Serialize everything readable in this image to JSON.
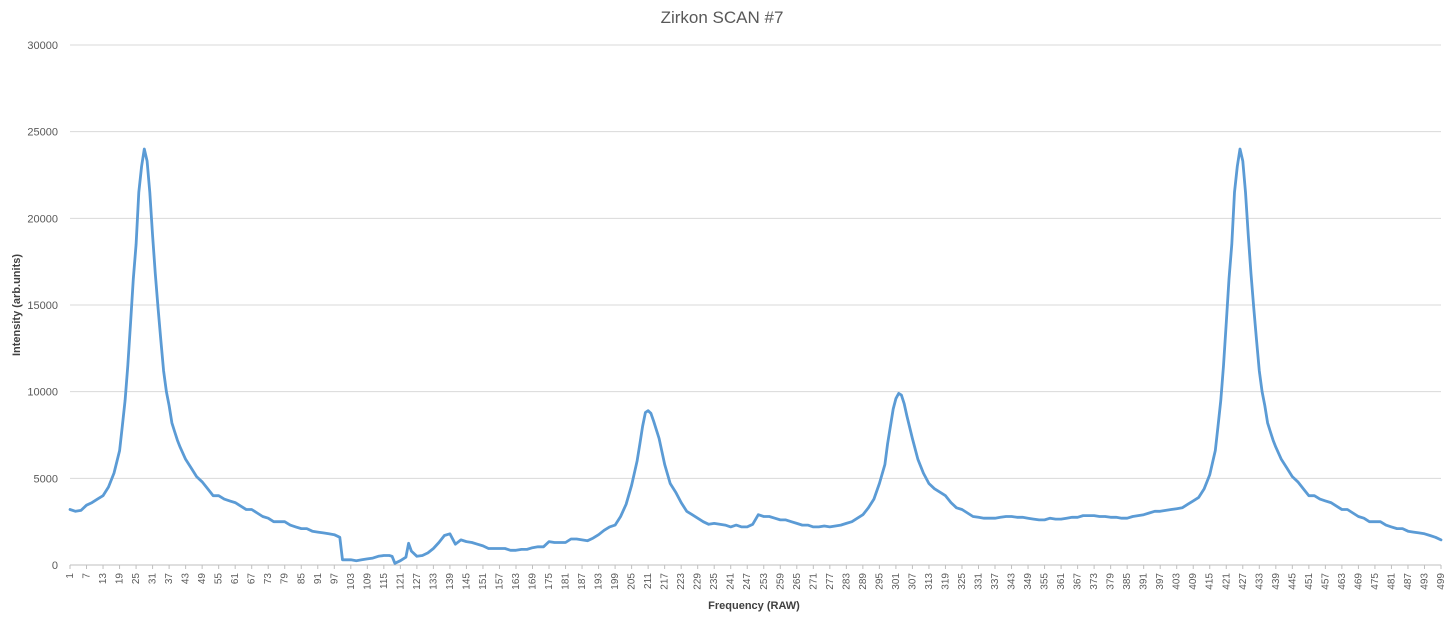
{
  "chart_data": {
    "type": "line",
    "title": "Zirkon SCAN #7",
    "xlabel": "Frequency (RAW)",
    "ylabel": "Intensity (arb.units)",
    "ylim": [
      0,
      30000
    ],
    "yticks": [
      0,
      5000,
      10000,
      15000,
      20000,
      25000,
      30000
    ],
    "xlim": [
      1,
      499
    ],
    "xtick_start": 1,
    "xtick_step": 6,
    "grid": true,
    "legend": "none",
    "series_color": "#5b9bd5",
    "series": [
      {
        "points": [
          [
            1,
            3200
          ],
          [
            3,
            3100
          ],
          [
            5,
            3150
          ],
          [
            7,
            3450
          ],
          [
            9,
            3600
          ],
          [
            11,
            3800
          ],
          [
            13,
            4000
          ],
          [
            15,
            4500
          ],
          [
            17,
            5300
          ],
          [
            19,
            6600
          ],
          [
            20,
            8000
          ],
          [
            21,
            9500
          ],
          [
            22,
            11500
          ],
          [
            23,
            14000
          ],
          [
            24,
            16500
          ],
          [
            25,
            18500
          ],
          [
            26,
            21500
          ],
          [
            27,
            23000
          ],
          [
            28,
            24000
          ],
          [
            29,
            23300
          ],
          [
            30,
            21500
          ],
          [
            31,
            19000
          ],
          [
            32,
            16800
          ],
          [
            33,
            14800
          ],
          [
            34,
            13000
          ],
          [
            35,
            11200
          ],
          [
            36,
            10000
          ],
          [
            37,
            9200
          ],
          [
            38,
            8200
          ],
          [
            39,
            7700
          ],
          [
            40,
            7200
          ],
          [
            41,
            6800
          ],
          [
            43,
            6100
          ],
          [
            45,
            5600
          ],
          [
            47,
            5100
          ],
          [
            49,
            4800
          ],
          [
            51,
            4400
          ],
          [
            53,
            4000
          ],
          [
            55,
            4000
          ],
          [
            57,
            3800
          ],
          [
            59,
            3700
          ],
          [
            61,
            3600
          ],
          [
            63,
            3400
          ],
          [
            65,
            3200
          ],
          [
            67,
            3200
          ],
          [
            69,
            3000
          ],
          [
            71,
            2800
          ],
          [
            73,
            2700
          ],
          [
            75,
            2500
          ],
          [
            77,
            2500
          ],
          [
            79,
            2500
          ],
          [
            81,
            2300
          ],
          [
            83,
            2200
          ],
          [
            85,
            2100
          ],
          [
            87,
            2100
          ],
          [
            89,
            1950
          ],
          [
            91,
            1900
          ],
          [
            93,
            1850
          ],
          [
            95,
            1800
          ],
          [
            97,
            1750
          ],
          [
            99,
            1600
          ],
          [
            100,
            300
          ],
          [
            103,
            300
          ],
          [
            105,
            250
          ],
          [
            107,
            300
          ],
          [
            109,
            350
          ],
          [
            111,
            400
          ],
          [
            113,
            500
          ],
          [
            115,
            550
          ],
          [
            117,
            550
          ],
          [
            118,
            500
          ],
          [
            119,
            100
          ],
          [
            121,
            250
          ],
          [
            123,
            450
          ],
          [
            124,
            1250
          ],
          [
            125,
            800
          ],
          [
            127,
            500
          ],
          [
            129,
            550
          ],
          [
            131,
            700
          ],
          [
            133,
            950
          ],
          [
            135,
            1300
          ],
          [
            137,
            1700
          ],
          [
            139,
            1800
          ],
          [
            141,
            1200
          ],
          [
            143,
            1450
          ],
          [
            145,
            1350
          ],
          [
            147,
            1300
          ],
          [
            149,
            1200
          ],
          [
            151,
            1100
          ],
          [
            153,
            950
          ],
          [
            155,
            950
          ],
          [
            157,
            950
          ],
          [
            159,
            950
          ],
          [
            161,
            850
          ],
          [
            163,
            850
          ],
          [
            165,
            900
          ],
          [
            167,
            900
          ],
          [
            169,
            1000
          ],
          [
            171,
            1050
          ],
          [
            173,
            1050
          ],
          [
            175,
            1350
          ],
          [
            177,
            1300
          ],
          [
            179,
            1300
          ],
          [
            181,
            1300
          ],
          [
            183,
            1500
          ],
          [
            185,
            1500
          ],
          [
            187,
            1450
          ],
          [
            189,
            1400
          ],
          [
            191,
            1550
          ],
          [
            193,
            1750
          ],
          [
            195,
            2000
          ],
          [
            197,
            2200
          ],
          [
            199,
            2300
          ],
          [
            201,
            2800
          ],
          [
            203,
            3500
          ],
          [
            205,
            4600
          ],
          [
            207,
            6000
          ],
          [
            208,
            7000
          ],
          [
            209,
            8000
          ],
          [
            210,
            8800
          ],
          [
            211,
            8900
          ],
          [
            212,
            8750
          ],
          [
            213,
            8300
          ],
          [
            215,
            7300
          ],
          [
            217,
            5800
          ],
          [
            219,
            4700
          ],
          [
            221,
            4200
          ],
          [
            223,
            3600
          ],
          [
            225,
            3100
          ],
          [
            227,
            2900
          ],
          [
            229,
            2700
          ],
          [
            231,
            2500
          ],
          [
            233,
            2350
          ],
          [
            235,
            2400
          ],
          [
            237,
            2350
          ],
          [
            239,
            2300
          ],
          [
            241,
            2200
          ],
          [
            243,
            2300
          ],
          [
            245,
            2200
          ],
          [
            247,
            2200
          ],
          [
            249,
            2350
          ],
          [
            251,
            2900
          ],
          [
            253,
            2800
          ],
          [
            255,
            2800
          ],
          [
            257,
            2700
          ],
          [
            259,
            2600
          ],
          [
            261,
            2600
          ],
          [
            263,
            2500
          ],
          [
            265,
            2400
          ],
          [
            267,
            2300
          ],
          [
            269,
            2300
          ],
          [
            271,
            2200
          ],
          [
            273,
            2200
          ],
          [
            275,
            2250
          ],
          [
            277,
            2200
          ],
          [
            279,
            2250
          ],
          [
            281,
            2300
          ],
          [
            283,
            2400
          ],
          [
            285,
            2500
          ],
          [
            287,
            2700
          ],
          [
            289,
            2900
          ],
          [
            291,
            3300
          ],
          [
            293,
            3800
          ],
          [
            295,
            4700
          ],
          [
            297,
            5800
          ],
          [
            298,
            7000
          ],
          [
            299,
            8000
          ],
          [
            300,
            9000
          ],
          [
            301,
            9600
          ],
          [
            302,
            9900
          ],
          [
            303,
            9800
          ],
          [
            304,
            9300
          ],
          [
            305,
            8600
          ],
          [
            307,
            7300
          ],
          [
            309,
            6100
          ],
          [
            311,
            5300
          ],
          [
            313,
            4700
          ],
          [
            315,
            4400
          ],
          [
            317,
            4200
          ],
          [
            319,
            4000
          ],
          [
            321,
            3600
          ],
          [
            323,
            3300
          ],
          [
            325,
            3200
          ],
          [
            327,
            3000
          ],
          [
            329,
            2800
          ],
          [
            331,
            2750
          ],
          [
            333,
            2700
          ],
          [
            335,
            2700
          ],
          [
            337,
            2700
          ],
          [
            339,
            2750
          ],
          [
            341,
            2800
          ],
          [
            343,
            2800
          ],
          [
            345,
            2750
          ],
          [
            347,
            2750
          ],
          [
            349,
            2700
          ],
          [
            351,
            2650
          ],
          [
            353,
            2600
          ],
          [
            355,
            2600
          ],
          [
            357,
            2700
          ],
          [
            359,
            2650
          ],
          [
            361,
            2650
          ],
          [
            363,
            2700
          ],
          [
            365,
            2750
          ],
          [
            367,
            2750
          ],
          [
            369,
            2850
          ],
          [
            371,
            2850
          ],
          [
            373,
            2850
          ],
          [
            375,
            2800
          ],
          [
            377,
            2800
          ],
          [
            379,
            2750
          ],
          [
            381,
            2750
          ],
          [
            383,
            2700
          ],
          [
            385,
            2700
          ],
          [
            387,
            2800
          ],
          [
            389,
            2850
          ],
          [
            391,
            2900
          ],
          [
            393,
            3000
          ],
          [
            395,
            3100
          ],
          [
            397,
            3100
          ],
          [
            399,
            3150
          ],
          [
            401,
            3200
          ],
          [
            403,
            3250
          ],
          [
            405,
            3300
          ],
          [
            407,
            3500
          ],
          [
            409,
            3700
          ],
          [
            411,
            3900
          ],
          [
            413,
            4400
          ],
          [
            415,
            5200
          ],
          [
            417,
            6600
          ],
          [
            418,
            8000
          ],
          [
            419,
            9500
          ],
          [
            420,
            11500
          ],
          [
            421,
            14000
          ],
          [
            422,
            16500
          ],
          [
            423,
            18500
          ],
          [
            424,
            21500
          ],
          [
            425,
            23000
          ],
          [
            426,
            24000
          ],
          [
            427,
            23300
          ],
          [
            428,
            21500
          ],
          [
            429,
            19000
          ],
          [
            430,
            16800
          ],
          [
            431,
            14800
          ],
          [
            432,
            13000
          ],
          [
            433,
            11200
          ],
          [
            434,
            10000
          ],
          [
            435,
            9200
          ],
          [
            436,
            8200
          ],
          [
            437,
            7700
          ],
          [
            438,
            7200
          ],
          [
            439,
            6800
          ],
          [
            441,
            6100
          ],
          [
            443,
            5600
          ],
          [
            445,
            5100
          ],
          [
            447,
            4800
          ],
          [
            449,
            4400
          ],
          [
            451,
            4000
          ],
          [
            453,
            4000
          ],
          [
            455,
            3800
          ],
          [
            457,
            3700
          ],
          [
            459,
            3600
          ],
          [
            461,
            3400
          ],
          [
            463,
            3200
          ],
          [
            465,
            3200
          ],
          [
            467,
            3000
          ],
          [
            469,
            2800
          ],
          [
            471,
            2700
          ],
          [
            473,
            2500
          ],
          [
            475,
            2500
          ],
          [
            477,
            2500
          ],
          [
            479,
            2300
          ],
          [
            481,
            2200
          ],
          [
            483,
            2100
          ],
          [
            485,
            2100
          ],
          [
            487,
            1950
          ],
          [
            489,
            1900
          ],
          [
            491,
            1850
          ],
          [
            493,
            1800
          ],
          [
            495,
            1700
          ],
          [
            497,
            1600
          ],
          [
            499,
            1450
          ]
        ]
      }
    ]
  }
}
